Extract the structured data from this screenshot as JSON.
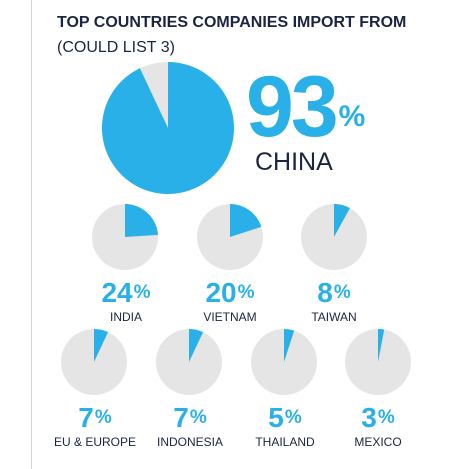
{
  "title": {
    "bold": "TOP COUNTRIES COMPANIES IMPORT FROM",
    "light": "(COULD LIST 3)"
  },
  "colors": {
    "slice": "#2ab0e9",
    "rest": "#e5e5e5",
    "text": "#1b2440"
  },
  "chart_data": {
    "type": "pie",
    "title": "TOP COUNTRIES COMPANIES IMPORT FROM (COULD LIST 3)",
    "unit": "%",
    "items": [
      {
        "label": "CHINA",
        "value": 93,
        "display": "93"
      },
      {
        "label": "INDIA",
        "value": 24,
        "display": "24"
      },
      {
        "label": "VIETNAM",
        "value": 20,
        "display": "20"
      },
      {
        "label": "TAIWAN",
        "value": 8,
        "display": "8"
      },
      {
        "label": "EU & EUROPE",
        "value": 7,
        "display": "7"
      },
      {
        "label": "INDONESIA",
        "value": 7,
        "display": "7"
      },
      {
        "label": "THAILAND",
        "value": 5,
        "display": "5"
      },
      {
        "label": "MEXICO",
        "value": 3,
        "display": "3"
      }
    ]
  }
}
